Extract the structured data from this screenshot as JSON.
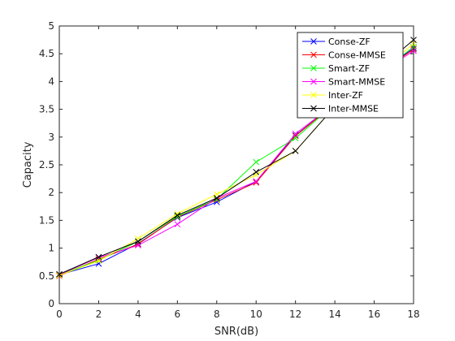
{
  "chart_data": {
    "type": "line",
    "title": "",
    "xlabel": "SNR(dB)",
    "ylabel": "Capacity",
    "xlim": [
      0,
      18
    ],
    "ylim": [
      0,
      5
    ],
    "xticks": [
      "0",
      "2",
      "4",
      "6",
      "8",
      "10",
      "12",
      "14",
      "16",
      "18"
    ],
    "yticks": [
      "0",
      "0.5",
      "1",
      "1.5",
      "2",
      "2.5",
      "3",
      "3.5",
      "4",
      "4.5",
      "5"
    ],
    "x": [
      0,
      2,
      4,
      6,
      8,
      10,
      12,
      14,
      16,
      18
    ],
    "grid": false,
    "legend_position": "top-right",
    "series": [
      {
        "name": "Conse-ZF",
        "color": "#0000ff",
        "values": [
          0.52,
          0.72,
          1.08,
          1.55,
          1.83,
          2.2,
          3.03,
          3.6,
          4.1,
          4.6
        ]
      },
      {
        "name": "Conse-MMSE",
        "color": "#ff0000",
        "values": [
          0.5,
          0.8,
          1.07,
          1.56,
          1.87,
          2.18,
          3.02,
          3.6,
          4.1,
          4.58
        ]
      },
      {
        "name": "Smart-ZF",
        "color": "#00ff00",
        "values": [
          0.52,
          0.78,
          1.12,
          1.57,
          1.88,
          2.55,
          2.98,
          3.6,
          4.1,
          4.62
        ]
      },
      {
        "name": "Smart-MMSE",
        "color": "#ff00ff",
        "values": [
          0.52,
          0.83,
          1.05,
          1.43,
          1.9,
          2.2,
          3.06,
          3.6,
          4.1,
          4.55
        ]
      },
      {
        "name": "Inter-ZF",
        "color": "#ffff00",
        "values": [
          0.51,
          0.77,
          1.17,
          1.62,
          1.97,
          2.32,
          2.75,
          3.55,
          4.1,
          4.68
        ]
      },
      {
        "name": "Inter-MMSE",
        "color": "#000000",
        "values": [
          0.53,
          0.84,
          1.12,
          1.59,
          1.9,
          2.37,
          2.75,
          3.55,
          4.15,
          4.75
        ]
      }
    ]
  }
}
